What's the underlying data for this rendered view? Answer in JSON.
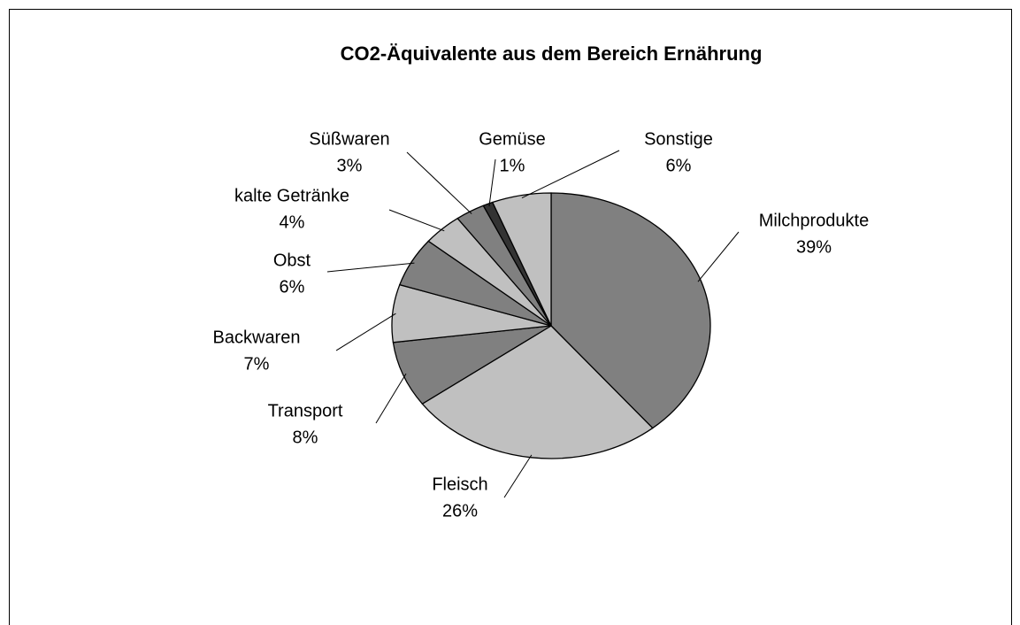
{
  "chart_data": {
    "type": "pie",
    "title": "CO2-Äquivalente aus dem Bereich Ernährung",
    "categories": [
      "Milchprodukte",
      "Fleisch",
      "Transport",
      "Backwaren",
      "Obst",
      "kalte Getränke",
      "Süßwaren",
      "Gemüse",
      "Sonstige"
    ],
    "values": [
      39,
      26,
      8,
      7,
      6,
      4,
      3,
      1,
      6
    ],
    "value_labels": [
      "39%",
      "26%",
      "8%",
      "7%",
      "6%",
      "4%",
      "3%",
      "1%",
      "6%"
    ],
    "colors": [
      "#808080",
      "#c0c0c0",
      "#808080",
      "#c0c0c0",
      "#808080",
      "#c0c0c0",
      "#808080",
      "#333333",
      "#c0c0c0"
    ]
  }
}
